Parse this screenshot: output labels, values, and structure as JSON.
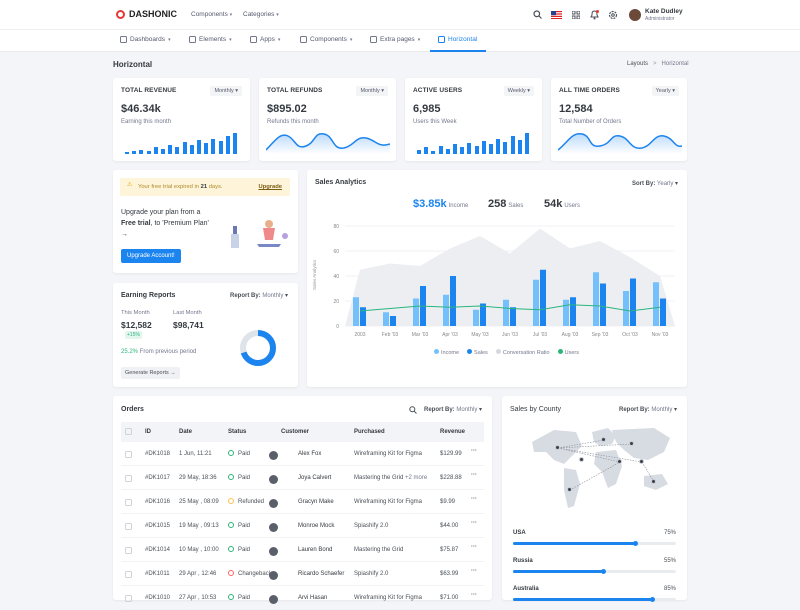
{
  "brand": {
    "name": "DASHONIC"
  },
  "topnav": {
    "components": "Components",
    "categories": "Categories"
  },
  "user": {
    "name": "Kate Dudley",
    "role": "Administrator"
  },
  "menu": [
    "Dashboards",
    "Elements",
    "Apps",
    "Components",
    "Extra pages",
    "Horizontal"
  ],
  "page": {
    "title": "Horizontal",
    "crumb1": "Layouts",
    "crumb_sep": ">",
    "crumb2": "Horizontal"
  },
  "stats": [
    {
      "title": "TOTAL REVENUE",
      "filter": "Monthly",
      "value": "$46.34k",
      "sub": "Earning this month",
      "bars": [
        0.1,
        0.15,
        0.2,
        0.12,
        0.3,
        0.22,
        0.4,
        0.3,
        0.55,
        0.42,
        0.62,
        0.5,
        0.7,
        0.58,
        0.8,
        0.95
      ]
    },
    {
      "title": "TOTAL REFUNDS",
      "filter": "Monthly",
      "value": "$895.02",
      "sub": "Refunds this month"
    },
    {
      "title": "ACTIVE USERS",
      "filter": "Weekly",
      "value": "6,985",
      "sub": "Users this Week",
      "bars": [
        0.2,
        0.3,
        0.15,
        0.35,
        0.25,
        0.45,
        0.3,
        0.5,
        0.35,
        0.6,
        0.45,
        0.7,
        0.55,
        0.8,
        0.65,
        0.95
      ]
    },
    {
      "title": "ALL TIME ORDERS",
      "filter": "Yearly",
      "value": "12,584",
      "sub": "Total Number of Orders"
    }
  ],
  "trial": {
    "text_a": "Your free trial expired in ",
    "days": "21",
    "text_b": " days.",
    "link": "Upgrade"
  },
  "upgrade": {
    "line1": "Upgrade your plan from a",
    "bold1": "Free trial",
    "line2": ", to 'Premium Plan'",
    "arrow": "→",
    "button": "Upgrade Account!"
  },
  "earning": {
    "title": "Earning Reports",
    "report_label": "Report By:",
    "report_value": "Monthly",
    "this_month_label": "This Month",
    "this_month": "$12,582",
    "badge": "+15%",
    "last_month_label": "Last Month",
    "last_month": "$98,741",
    "change": "25.2%",
    "change_text": "From previous period",
    "button": "Generate Reports",
    "donut_pct": 70
  },
  "sales": {
    "title": "Sales Analytics",
    "sort_label": "Sort By:",
    "sort_value": "Yearly",
    "income": "$3.85k",
    "income_label": "Income",
    "sales": "258",
    "sales_label": "Sales",
    "users": "54k",
    "users_label": "Users",
    "ylabel": "Sales Analytics"
  },
  "chart_data": {
    "type": "bar",
    "categories": [
      "2003",
      "Feb '03",
      "Mar '03",
      "Apr '03",
      "May '03",
      "Jun '03",
      "Jul '03",
      "Aug '03",
      "Sep '03",
      "Oct '03",
      "Nov '03"
    ],
    "yticks": [
      "0",
      "20",
      "40",
      "60",
      "80"
    ],
    "ylim": [
      0,
      80
    ],
    "series": [
      {
        "name": "Income",
        "values": [
          23,
          11,
          22,
          25,
          13,
          21,
          37,
          21,
          43,
          28,
          35
        ]
      },
      {
        "name": "Sales",
        "values": [
          15,
          8,
          32,
          40,
          18,
          15,
          45,
          23,
          34,
          38,
          22
        ]
      },
      {
        "name": "Conversation Ratio",
        "values": [
          45,
          50,
          48,
          62,
          72,
          58,
          78,
          62,
          68,
          55,
          40
        ]
      },
      {
        "name": "Users",
        "values": [
          12,
          14,
          16,
          15,
          16,
          14,
          13,
          17,
          16,
          12,
          15
        ]
      }
    ]
  },
  "orders": {
    "title": "Orders",
    "report_label": "Report By:",
    "report_value": "Monthly",
    "headers": [
      "ID",
      "Date",
      "Status",
      "Customer",
      "Purchased",
      "Revenue"
    ],
    "rows": [
      {
        "id": "#DK1018",
        "date": "1 Jun, 11:21",
        "status": "Paid",
        "customer": "Alex Fox",
        "purchased": "Wireframing Kit for Figma",
        "extra": "",
        "revenue": "$129.99"
      },
      {
        "id": "#DK1017",
        "date": "29 May, 18:36",
        "status": "Paid",
        "customer": "Joya Calvert",
        "purchased": "Mastering the Grid",
        "extra": "+2 more",
        "revenue": "$228.88"
      },
      {
        "id": "#DK1016",
        "date": "25 May , 08:09",
        "status": "Refunded",
        "customer": "Gracyn Make",
        "purchased": "Wireframing Kit for Figma",
        "extra": "",
        "revenue": "$9.99"
      },
      {
        "id": "#DK1015",
        "date": "19 May , 09:13",
        "status": "Paid",
        "customer": "Monroe Mock",
        "purchased": "Spiashify 2.0",
        "extra": "",
        "revenue": "$44.00"
      },
      {
        "id": "#DK1014",
        "date": "10 May , 10:00",
        "status": "Paid",
        "customer": "Lauren Bond",
        "purchased": "Mastering the Grid",
        "extra": "",
        "revenue": "$75.87"
      },
      {
        "id": "#DK1011",
        "date": "29 Apr , 12:46",
        "status": "Changeback",
        "customer": "Ricardo Schaefer",
        "purchased": "Spiashify 2.0",
        "extra": "",
        "revenue": "$63.99"
      },
      {
        "id": "#DK1010",
        "date": "27 Apr , 10:53",
        "status": "Paid",
        "customer": "Arvi Hasan",
        "purchased": "Wireframing Kit for Figma",
        "extra": "",
        "revenue": "$71.00"
      }
    ]
  },
  "county": {
    "title": "Sales by County",
    "report_label": "Report By:",
    "report_value": "Monthly",
    "items": [
      {
        "name": "USA",
        "pct": "75%",
        "value": 75
      },
      {
        "name": "Russia",
        "pct": "55%",
        "value": 55
      },
      {
        "name": "Australia",
        "pct": "85%",
        "value": 85
      }
    ]
  }
}
